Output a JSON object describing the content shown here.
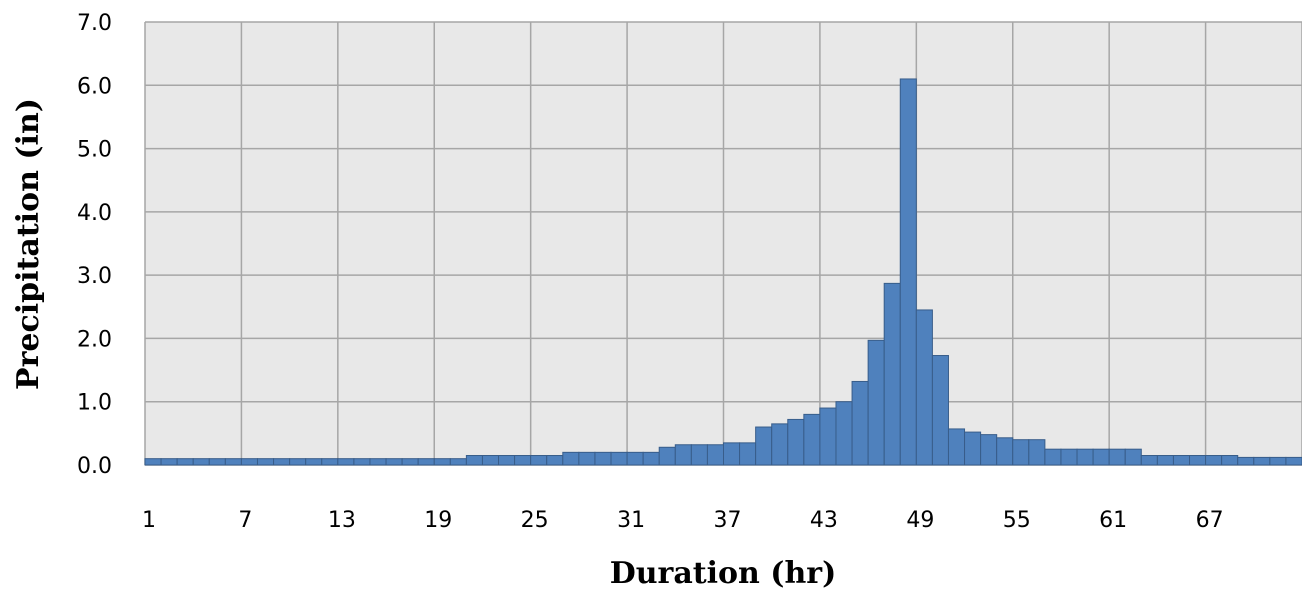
{
  "chart_data": {
    "type": "bar",
    "title": "",
    "xlabel": "Duration (hr)",
    "ylabel": "Precipitation (in)",
    "ylim": [
      0,
      7
    ],
    "yticks": [
      "0.0",
      "1.0",
      "2.0",
      "3.0",
      "4.0",
      "5.0",
      "6.0",
      "7.0"
    ],
    "xtick_labels": [
      "1",
      "7",
      "13",
      "19",
      "25",
      "31",
      "37",
      "43",
      "49",
      "55",
      "61",
      "67"
    ],
    "grid": true,
    "legend": "none",
    "bar_color": "#4F81BD",
    "bar_edge_color": "#385D8A",
    "plot_background": "#E8E8E8",
    "categories": [
      1,
      2,
      3,
      4,
      5,
      6,
      7,
      8,
      9,
      10,
      11,
      12,
      13,
      14,
      15,
      16,
      17,
      18,
      19,
      20,
      21,
      22,
      23,
      24,
      25,
      26,
      27,
      28,
      29,
      30,
      31,
      32,
      33,
      34,
      35,
      36,
      37,
      38,
      39,
      40,
      41,
      42,
      43,
      44,
      45,
      46,
      47,
      48,
      49,
      50,
      51,
      52,
      53,
      54,
      55,
      56,
      57,
      58,
      59,
      60,
      61,
      62,
      63,
      64,
      65,
      66,
      67,
      68,
      69,
      70,
      71,
      72
    ],
    "values": [
      0.1,
      0.1,
      0.1,
      0.1,
      0.1,
      0.1,
      0.1,
      0.1,
      0.1,
      0.1,
      0.1,
      0.1,
      0.1,
      0.1,
      0.1,
      0.1,
      0.1,
      0.1,
      0.1,
      0.1,
      0.15,
      0.15,
      0.15,
      0.15,
      0.15,
      0.15,
      0.2,
      0.2,
      0.2,
      0.2,
      0.2,
      0.2,
      0.28,
      0.32,
      0.32,
      0.32,
      0.35,
      0.35,
      0.6,
      0.65,
      0.72,
      0.8,
      0.9,
      1.0,
      1.32,
      1.97,
      2.87,
      6.1,
      2.45,
      1.73,
      0.57,
      0.52,
      0.48,
      0.43,
      0.4,
      0.4,
      0.25,
      0.25,
      0.25,
      0.25,
      0.25,
      0.25,
      0.15,
      0.15,
      0.15,
      0.15,
      0.15,
      0.15,
      0.12,
      0.12,
      0.12,
      0.12
    ]
  }
}
